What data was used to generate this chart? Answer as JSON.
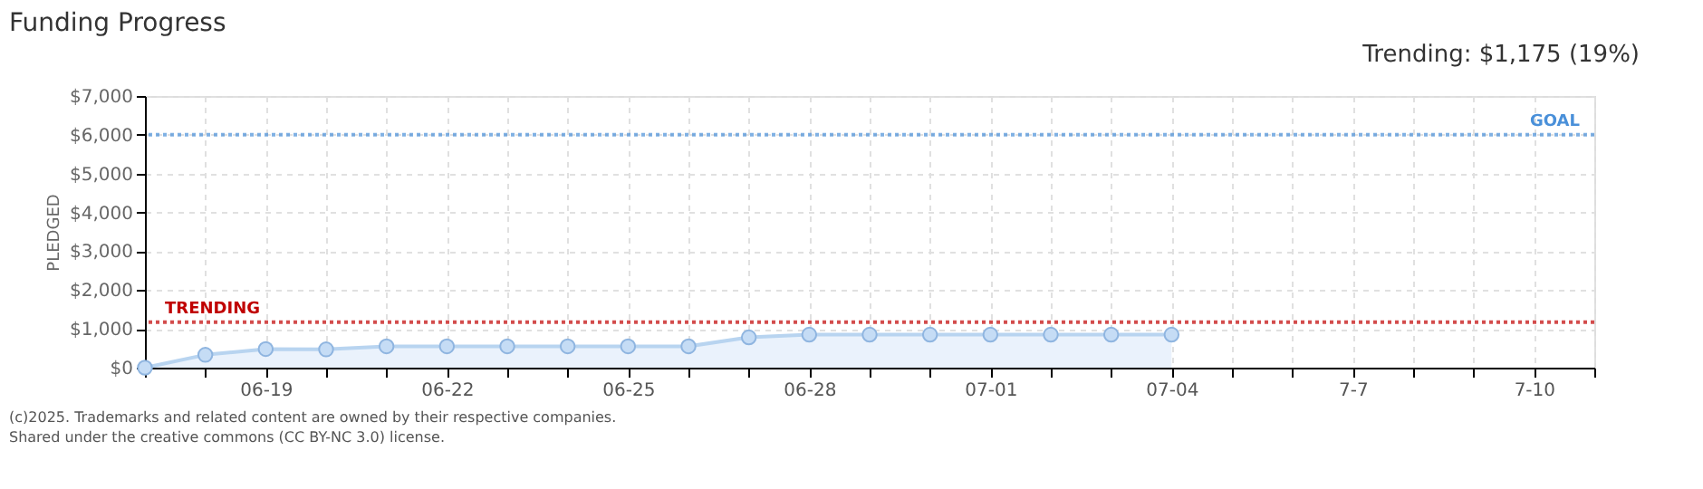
{
  "chart_data": {
    "type": "area",
    "title": "Funding Progress",
    "subtitle": "Trending: $1,175 (19%)",
    "ylabel": "PLEDGED",
    "x": [
      "2025-06-17",
      "2025-06-18",
      "2025-06-19",
      "2025-06-20",
      "2025-06-21",
      "2025-06-22",
      "2025-06-23",
      "2025-06-24",
      "2025-06-25",
      "2025-06-26",
      "2025-06-27",
      "2025-06-28",
      "2025-06-29",
      "2025-06-30",
      "2025-07-01",
      "2025-07-02",
      "2025-07-03",
      "2025-07-04"
    ],
    "series": [
      {
        "color": "#b8d4f0",
        "values": [
          0,
          330,
          480,
          470,
          550,
          550,
          550,
          550,
          550,
          550,
          780,
          850,
          850,
          850,
          850,
          850,
          850,
          850
        ]
      }
    ],
    "xlim": [
      "2025-06-17",
      "2025-07-11"
    ],
    "xticks": [
      {
        "value": "2025-06-17",
        "label": null
      },
      {
        "value": "2025-06-18",
        "label": null
      },
      {
        "value": "2025-06-19",
        "label": "06-19"
      },
      {
        "value": "2025-06-20",
        "label": null
      },
      {
        "value": "2025-06-21",
        "label": null
      },
      {
        "value": "2025-06-22",
        "label": "06-22"
      },
      {
        "value": "2025-06-23",
        "label": null
      },
      {
        "value": "2025-06-24",
        "label": null
      },
      {
        "value": "2025-06-25",
        "label": "06-25"
      },
      {
        "value": "2025-06-26",
        "label": null
      },
      {
        "value": "2025-06-27",
        "label": null
      },
      {
        "value": "2025-06-28",
        "label": "06-28"
      },
      {
        "value": "2025-06-29",
        "label": null
      },
      {
        "value": "2025-06-30",
        "label": null
      },
      {
        "value": "2025-07-01",
        "label": "07-01"
      },
      {
        "value": "2025-07-02",
        "label": null
      },
      {
        "value": "2025-07-03",
        "label": null
      },
      {
        "value": "2025-07-04",
        "label": "07-04"
      },
      {
        "value": "2025-07-05",
        "label": null
      },
      {
        "value": "2025-07-06",
        "label": null
      },
      {
        "value": "2025-07-07",
        "label": "7-7"
      },
      {
        "value": "2025-07-08",
        "label": null
      },
      {
        "value": "2025-07-09",
        "label": null
      },
      {
        "value": "2025-07-10",
        "label": "7-10"
      },
      {
        "value": "2025-07-11",
        "label": null
      }
    ],
    "ylim": [
      0,
      7000
    ],
    "yticks": [
      {
        "value": 0,
        "label": "$0"
      },
      {
        "value": 1000,
        "label": "$1,000"
      },
      {
        "value": 2000,
        "label": "$2,000"
      },
      {
        "value": 3000,
        "label": "$3,000"
      },
      {
        "value": 4000,
        "label": "$4,000"
      },
      {
        "value": 5000,
        "label": "$5,000"
      },
      {
        "value": 6000,
        "label": "$6,000"
      },
      {
        "value": 7000,
        "label": "$7,000"
      }
    ],
    "ref_lines": [
      {
        "axis": "y",
        "value": 6000,
        "label": "GOAL",
        "color": "#4a90d9",
        "line_style": "dotted"
      },
      {
        "axis": "y",
        "value": 1175,
        "label": "TRENDING",
        "color": "#c00000",
        "line_style": "dotted"
      }
    ],
    "grid": true,
    "marker": "circle",
    "annotations": [
      "(c)2025. Trademarks and related content are owned by their respective companies.",
      "Shared under the creative commons (CC BY-NC 3.0) license."
    ]
  }
}
